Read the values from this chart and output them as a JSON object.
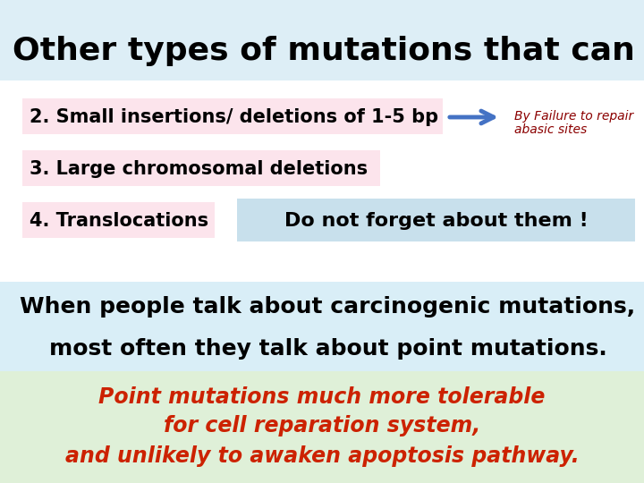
{
  "title": "Other types of mutations that can occur",
  "title_bg": "#ddeef6",
  "title_color": "#000000",
  "title_fontsize": 26,
  "item2_text": "2. Small insertions/ deletions of 1-5 bp",
  "item2_bg": "#fce4ec",
  "item2_arrow_color": "#4472c4",
  "item2_note_line1": "By Failure to repair",
  "item2_note_line2": "abasic sites",
  "item2_note_color": "#8b0000",
  "item3_text": "3. Large chromosomal deletions",
  "item3_bg": "#fce4ec",
  "item4_text": "4. Translocations",
  "item4_bg": "#fce4ec",
  "item4_note_text": "Do not forget about them !",
  "item4_note_bg": "#c8e0ec",
  "white_bg": "#ffffff",
  "middle_section_bg": "#d9eef7",
  "line1_text": "When people talk about carcinogenic mutations,",
  "line2_text": "most often they talk about point mutations.",
  "bottom_section_bg": "#dff0d8",
  "bottom_line1": "Point mutations much more tolerable",
  "bottom_line2": "for cell reparation system,",
  "bottom_line3": "and unlikely to awaken apoptosis pathway.",
  "bottom_text_color": "#cc2200",
  "bg_color": "#ffffff"
}
